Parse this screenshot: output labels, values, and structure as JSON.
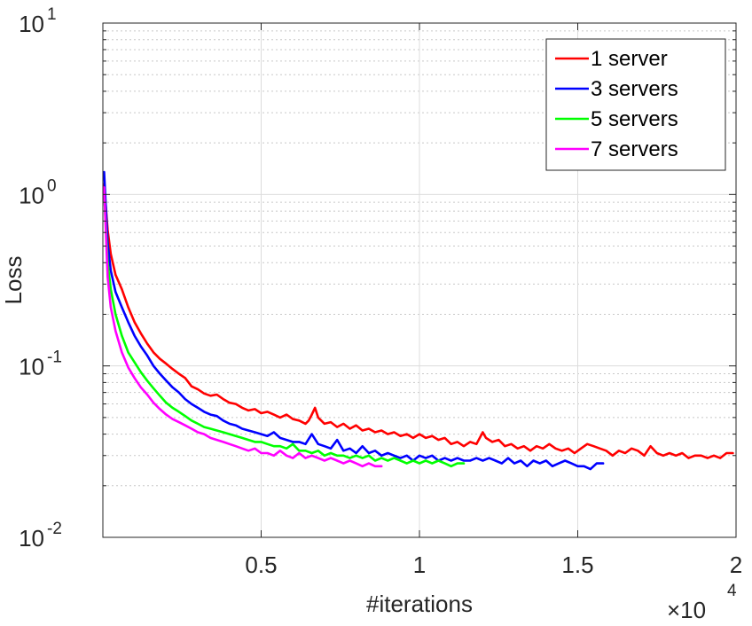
{
  "chart_data": {
    "type": "line",
    "xlabel": "#iterations",
    "ylabel": "Loss",
    "x_multiplier": "×10",
    "x_multiplier_exp": "4",
    "x_unit_factor": 10000,
    "xlim": [
      0,
      20000
    ],
    "ylim": [
      0.01,
      10
    ],
    "yscale": "log",
    "x_ticks": [
      {
        "value": 5000,
        "label": "0.5"
      },
      {
        "value": 10000,
        "label": "1"
      },
      {
        "value": 15000,
        "label": "1.5"
      },
      {
        "value": 20000,
        "label": "2"
      }
    ],
    "y_ticks": [
      {
        "value": 0.01,
        "base": "10",
        "exp": "-2"
      },
      {
        "value": 0.1,
        "base": "10",
        "exp": "-1"
      },
      {
        "value": 1,
        "base": "10",
        "exp": "0"
      },
      {
        "value": 10,
        "base": "10",
        "exp": "1"
      }
    ],
    "grid": true,
    "legend_position": "top-right",
    "series": [
      {
        "name": "1 server",
        "color": "#ff0000",
        "points": [
          [
            40,
            1.15
          ],
          [
            150,
            0.62
          ],
          [
            250,
            0.45
          ],
          [
            400,
            0.34
          ],
          [
            600,
            0.28
          ],
          [
            800,
            0.22
          ],
          [
            1000,
            0.18
          ],
          [
            1200,
            0.155
          ],
          [
            1400,
            0.135
          ],
          [
            1600,
            0.12
          ],
          [
            1800,
            0.11
          ],
          [
            2000,
            0.103
          ],
          [
            2200,
            0.096
          ],
          [
            2400,
            0.09
          ],
          [
            2600,
            0.085
          ],
          [
            2800,
            0.076
          ],
          [
            3000,
            0.073
          ],
          [
            3200,
            0.069
          ],
          [
            3400,
            0.067
          ],
          [
            3600,
            0.068
          ],
          [
            3800,
            0.064
          ],
          [
            4000,
            0.061
          ],
          [
            4200,
            0.06
          ],
          [
            4400,
            0.057
          ],
          [
            4600,
            0.055
          ],
          [
            4800,
            0.056
          ],
          [
            5000,
            0.053
          ],
          [
            5200,
            0.054
          ],
          [
            5400,
            0.052
          ],
          [
            5600,
            0.05
          ],
          [
            5800,
            0.052
          ],
          [
            6000,
            0.049
          ],
          [
            6200,
            0.048
          ],
          [
            6400,
            0.046
          ],
          [
            6500,
            0.048
          ],
          [
            6600,
            0.052
          ],
          [
            6700,
            0.057
          ],
          [
            6800,
            0.05
          ],
          [
            7000,
            0.046
          ],
          [
            7200,
            0.047
          ],
          [
            7400,
            0.044
          ],
          [
            7600,
            0.046
          ],
          [
            7800,
            0.043
          ],
          [
            8000,
            0.045
          ],
          [
            8200,
            0.042
          ],
          [
            8400,
            0.043
          ],
          [
            8600,
            0.041
          ],
          [
            8800,
            0.042
          ],
          [
            9000,
            0.04
          ],
          [
            9200,
            0.041
          ],
          [
            9400,
            0.039
          ],
          [
            9600,
            0.04
          ],
          [
            9800,
            0.038
          ],
          [
            10000,
            0.04
          ],
          [
            10200,
            0.038
          ],
          [
            10400,
            0.039
          ],
          [
            10600,
            0.037
          ],
          [
            10800,
            0.038
          ],
          [
            11000,
            0.035
          ],
          [
            11200,
            0.036
          ],
          [
            11400,
            0.034
          ],
          [
            11600,
            0.036
          ],
          [
            11800,
            0.035
          ],
          [
            12000,
            0.041
          ],
          [
            12100,
            0.038
          ],
          [
            12300,
            0.036
          ],
          [
            12500,
            0.037
          ],
          [
            12700,
            0.034
          ],
          [
            12900,
            0.035
          ],
          [
            13100,
            0.033
          ],
          [
            13300,
            0.034
          ],
          [
            13500,
            0.032
          ],
          [
            13700,
            0.034
          ],
          [
            13900,
            0.033
          ],
          [
            14100,
            0.035
          ],
          [
            14300,
            0.033
          ],
          [
            14500,
            0.032
          ],
          [
            14700,
            0.033
          ],
          [
            14900,
            0.031
          ],
          [
            15100,
            0.033
          ],
          [
            15300,
            0.035
          ],
          [
            15500,
            0.034
          ],
          [
            15700,
            0.033
          ],
          [
            15900,
            0.032
          ],
          [
            16100,
            0.03
          ],
          [
            16300,
            0.032
          ],
          [
            16500,
            0.031
          ],
          [
            16700,
            0.033
          ],
          [
            16900,
            0.032
          ],
          [
            17100,
            0.03
          ],
          [
            17300,
            0.034
          ],
          [
            17500,
            0.031
          ],
          [
            17700,
            0.03
          ],
          [
            17900,
            0.031
          ],
          [
            18100,
            0.03
          ],
          [
            18300,
            0.031
          ],
          [
            18500,
            0.029
          ],
          [
            18700,
            0.03
          ],
          [
            18900,
            0.03
          ],
          [
            19100,
            0.029
          ],
          [
            19300,
            0.03
          ],
          [
            19500,
            0.029
          ],
          [
            19700,
            0.031
          ],
          [
            19900,
            0.031
          ]
        ]
      },
      {
        "name": "3 servers",
        "color": "#0000ff",
        "points": [
          [
            40,
            1.35
          ],
          [
            150,
            0.52
          ],
          [
            250,
            0.36
          ],
          [
            400,
            0.27
          ],
          [
            600,
            0.22
          ],
          [
            800,
            0.18
          ],
          [
            1000,
            0.15
          ],
          [
            1200,
            0.13
          ],
          [
            1400,
            0.115
          ],
          [
            1600,
            0.1
          ],
          [
            1800,
            0.09
          ],
          [
            2000,
            0.082
          ],
          [
            2200,
            0.075
          ],
          [
            2400,
            0.07
          ],
          [
            2600,
            0.064
          ],
          [
            2800,
            0.06
          ],
          [
            3000,
            0.057
          ],
          [
            3200,
            0.054
          ],
          [
            3400,
            0.052
          ],
          [
            3600,
            0.051
          ],
          [
            3800,
            0.048
          ],
          [
            4000,
            0.046
          ],
          [
            4200,
            0.045
          ],
          [
            4400,
            0.043
          ],
          [
            4600,
            0.042
          ],
          [
            4800,
            0.041
          ],
          [
            5000,
            0.04
          ],
          [
            5200,
            0.039
          ],
          [
            5400,
            0.041
          ],
          [
            5600,
            0.038
          ],
          [
            5800,
            0.037
          ],
          [
            6000,
            0.036
          ],
          [
            6200,
            0.036
          ],
          [
            6400,
            0.035
          ],
          [
            6600,
            0.04
          ],
          [
            6800,
            0.035
          ],
          [
            7000,
            0.034
          ],
          [
            7200,
            0.033
          ],
          [
            7400,
            0.037
          ],
          [
            7600,
            0.032
          ],
          [
            7800,
            0.033
          ],
          [
            8000,
            0.031
          ],
          [
            8200,
            0.034
          ],
          [
            8400,
            0.031
          ],
          [
            8600,
            0.032
          ],
          [
            8800,
            0.03
          ],
          [
            9000,
            0.031
          ],
          [
            9200,
            0.03
          ],
          [
            9400,
            0.029
          ],
          [
            9600,
            0.03
          ],
          [
            9800,
            0.028
          ],
          [
            10000,
            0.03
          ],
          [
            10200,
            0.029
          ],
          [
            10400,
            0.03
          ],
          [
            10600,
            0.028
          ],
          [
            10800,
            0.029
          ],
          [
            11000,
            0.028
          ],
          [
            11200,
            0.029
          ],
          [
            11400,
            0.028
          ],
          [
            11600,
            0.028
          ],
          [
            11800,
            0.029
          ],
          [
            12000,
            0.028
          ],
          [
            12200,
            0.029
          ],
          [
            12400,
            0.028
          ],
          [
            12600,
            0.027
          ],
          [
            12800,
            0.029
          ],
          [
            13000,
            0.027
          ],
          [
            13200,
            0.028
          ],
          [
            13400,
            0.026
          ],
          [
            13600,
            0.028
          ],
          [
            13800,
            0.027
          ],
          [
            14000,
            0.028
          ],
          [
            14200,
            0.026
          ],
          [
            14400,
            0.027
          ],
          [
            14600,
            0.028
          ],
          [
            14800,
            0.027
          ],
          [
            15000,
            0.026
          ],
          [
            15200,
            0.026
          ],
          [
            15400,
            0.025
          ],
          [
            15600,
            0.027
          ],
          [
            15800,
            0.027
          ]
        ]
      },
      {
        "name": "5 servers",
        "color": "#00ff00",
        "points": [
          [
            40,
            1.05
          ],
          [
            150,
            0.4
          ],
          [
            250,
            0.28
          ],
          [
            400,
            0.2
          ],
          [
            600,
            0.15
          ],
          [
            800,
            0.12
          ],
          [
            1000,
            0.105
          ],
          [
            1200,
            0.092
          ],
          [
            1400,
            0.082
          ],
          [
            1600,
            0.074
          ],
          [
            1800,
            0.067
          ],
          [
            2000,
            0.061
          ],
          [
            2200,
            0.057
          ],
          [
            2400,
            0.054
          ],
          [
            2600,
            0.051
          ],
          [
            2800,
            0.048
          ],
          [
            3000,
            0.046
          ],
          [
            3200,
            0.044
          ],
          [
            3400,
            0.043
          ],
          [
            3600,
            0.042
          ],
          [
            3800,
            0.041
          ],
          [
            4000,
            0.04
          ],
          [
            4200,
            0.039
          ],
          [
            4400,
            0.038
          ],
          [
            4600,
            0.037
          ],
          [
            4800,
            0.036
          ],
          [
            5000,
            0.036
          ],
          [
            5200,
            0.035
          ],
          [
            5400,
            0.034
          ],
          [
            5600,
            0.034
          ],
          [
            5800,
            0.033
          ],
          [
            6000,
            0.035
          ],
          [
            6200,
            0.032
          ],
          [
            6400,
            0.032
          ],
          [
            6600,
            0.031
          ],
          [
            6800,
            0.032
          ],
          [
            7000,
            0.03
          ],
          [
            7200,
            0.031
          ],
          [
            7400,
            0.03
          ],
          [
            7600,
            0.03
          ],
          [
            7800,
            0.029
          ],
          [
            8000,
            0.03
          ],
          [
            8200,
            0.029
          ],
          [
            8400,
            0.03
          ],
          [
            8600,
            0.028
          ],
          [
            8800,
            0.029
          ],
          [
            9000,
            0.028
          ],
          [
            9200,
            0.029
          ],
          [
            9400,
            0.028
          ],
          [
            9600,
            0.027
          ],
          [
            9800,
            0.028
          ],
          [
            10000,
            0.027
          ],
          [
            10200,
            0.028
          ],
          [
            10400,
            0.027
          ],
          [
            10600,
            0.028
          ],
          [
            10800,
            0.027
          ],
          [
            11000,
            0.026
          ],
          [
            11200,
            0.027
          ],
          [
            11400,
            0.027
          ]
        ]
      },
      {
        "name": "7 servers",
        "color": "#ff00ff",
        "points": [
          [
            40,
            1.1
          ],
          [
            150,
            0.33
          ],
          [
            250,
            0.22
          ],
          [
            400,
            0.16
          ],
          [
            600,
            0.12
          ],
          [
            800,
            0.098
          ],
          [
            1000,
            0.085
          ],
          [
            1200,
            0.075
          ],
          [
            1400,
            0.068
          ],
          [
            1600,
            0.061
          ],
          [
            1800,
            0.056
          ],
          [
            2000,
            0.052
          ],
          [
            2200,
            0.049
          ],
          [
            2400,
            0.047
          ],
          [
            2600,
            0.045
          ],
          [
            2800,
            0.043
          ],
          [
            3000,
            0.041
          ],
          [
            3200,
            0.04
          ],
          [
            3400,
            0.038
          ],
          [
            3600,
            0.037
          ],
          [
            3800,
            0.036
          ],
          [
            4000,
            0.035
          ],
          [
            4200,
            0.034
          ],
          [
            4400,
            0.033
          ],
          [
            4600,
            0.032
          ],
          [
            4800,
            0.033
          ],
          [
            5000,
            0.031
          ],
          [
            5200,
            0.031
          ],
          [
            5400,
            0.03
          ],
          [
            5600,
            0.032
          ],
          [
            5800,
            0.03
          ],
          [
            6000,
            0.029
          ],
          [
            6200,
            0.031
          ],
          [
            6400,
            0.029
          ],
          [
            6600,
            0.03
          ],
          [
            6800,
            0.029
          ],
          [
            7000,
            0.028
          ],
          [
            7200,
            0.029
          ],
          [
            7400,
            0.028
          ],
          [
            7600,
            0.027
          ],
          [
            7800,
            0.028
          ],
          [
            8000,
            0.027
          ],
          [
            8200,
            0.026
          ],
          [
            8400,
            0.027
          ],
          [
            8600,
            0.026
          ],
          [
            8800,
            0.026
          ]
        ]
      }
    ]
  }
}
